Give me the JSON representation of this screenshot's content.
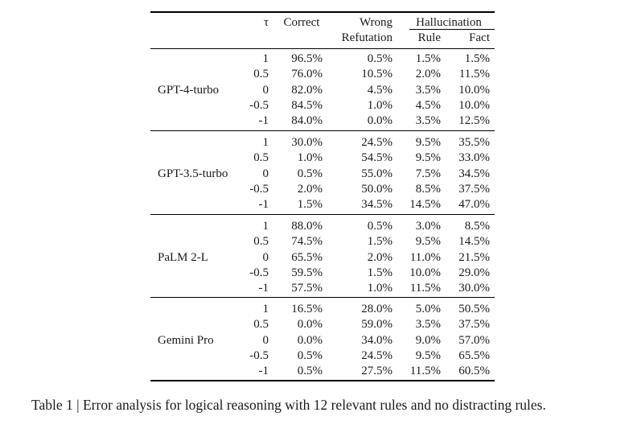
{
  "header": {
    "tau": "τ",
    "correct": "Correct",
    "wrong_line1": "Wrong",
    "wrong_line2": "Refutation",
    "hallucination": "Hallucination",
    "rule": "Rule",
    "fact": "Fact"
  },
  "groups": [
    {
      "model": "GPT-4-turbo",
      "rows": [
        {
          "tau": "1",
          "correct": "96.5%",
          "wrong": "0.5%",
          "rule": "1.5%",
          "fact": "1.5%"
        },
        {
          "tau": "0.5",
          "correct": "76.0%",
          "wrong": "10.5%",
          "rule": "2.0%",
          "fact": "11.5%"
        },
        {
          "tau": "0",
          "correct": "82.0%",
          "wrong": "4.5%",
          "rule": "3.5%",
          "fact": "10.0%"
        },
        {
          "tau": "-0.5",
          "correct": "84.5%",
          "wrong": "1.0%",
          "rule": "4.5%",
          "fact": "10.0%"
        },
        {
          "tau": "-1",
          "correct": "84.0%",
          "wrong": "0.0%",
          "rule": "3.5%",
          "fact": "12.5%"
        }
      ]
    },
    {
      "model": "GPT-3.5-turbo",
      "rows": [
        {
          "tau": "1",
          "correct": "30.0%",
          "wrong": "24.5%",
          "rule": "9.5%",
          "fact": "35.5%"
        },
        {
          "tau": "0.5",
          "correct": "1.0%",
          "wrong": "54.5%",
          "rule": "9.5%",
          "fact": "33.0%"
        },
        {
          "tau": "0",
          "correct": "0.5%",
          "wrong": "55.0%",
          "rule": "7.5%",
          "fact": "34.5%"
        },
        {
          "tau": "-0.5",
          "correct": "2.0%",
          "wrong": "50.0%",
          "rule": "8.5%",
          "fact": "37.5%"
        },
        {
          "tau": "-1",
          "correct": "1.5%",
          "wrong": "34.5%",
          "rule": "14.5%",
          "fact": "47.0%"
        }
      ]
    },
    {
      "model": "PaLM 2-L",
      "rows": [
        {
          "tau": "1",
          "correct": "88.0%",
          "wrong": "0.5%",
          "rule": "3.0%",
          "fact": "8.5%"
        },
        {
          "tau": "0.5",
          "correct": "74.5%",
          "wrong": "1.5%",
          "rule": "9.5%",
          "fact": "14.5%"
        },
        {
          "tau": "0",
          "correct": "65.5%",
          "wrong": "2.0%",
          "rule": "11.0%",
          "fact": "21.5%"
        },
        {
          "tau": "-0.5",
          "correct": "59.5%",
          "wrong": "1.5%",
          "rule": "10.0%",
          "fact": "29.0%"
        },
        {
          "tau": "-1",
          "correct": "57.5%",
          "wrong": "1.0%",
          "rule": "11.5%",
          "fact": "30.0%"
        }
      ]
    },
    {
      "model": "Gemini Pro",
      "rows": [
        {
          "tau": "1",
          "correct": "16.5%",
          "wrong": "28.0%",
          "rule": "5.0%",
          "fact": "50.5%"
        },
        {
          "tau": "0.5",
          "correct": "0.0%",
          "wrong": "59.0%",
          "rule": "3.5%",
          "fact": "37.5%"
        },
        {
          "tau": "0",
          "correct": "0.0%",
          "wrong": "34.0%",
          "rule": "9.0%",
          "fact": "57.0%"
        },
        {
          "tau": "-0.5",
          "correct": "0.5%",
          "wrong": "24.5%",
          "rule": "9.5%",
          "fact": "65.5%"
        },
        {
          "tau": "-1",
          "correct": "0.5%",
          "wrong": "27.5%",
          "rule": "11.5%",
          "fact": "60.5%"
        }
      ]
    }
  ],
  "caption": "Table 1 | Error analysis for logical reasoning with 12 relevant rules and no distracting rules."
}
